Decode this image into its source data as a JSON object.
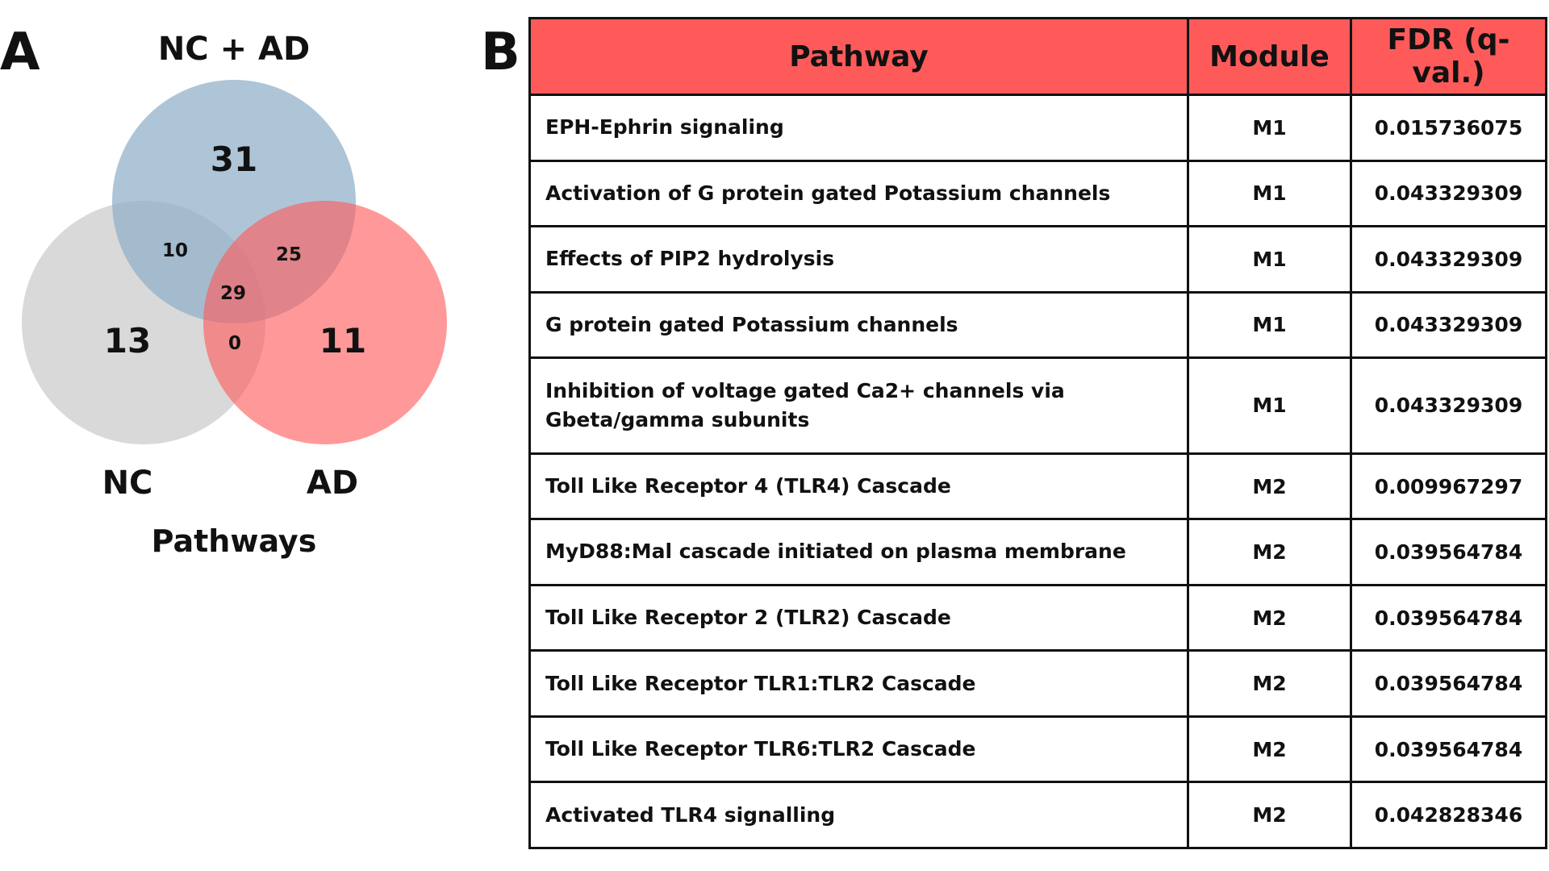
{
  "panel_a": {
    "letter": "A",
    "title": "NC + AD",
    "bottom_label": "Pathways",
    "sets": [
      {
        "name": "NC + AD",
        "color": "#8faec8"
      },
      {
        "name": "NC",
        "color": "#d9d9d9"
      },
      {
        "name": "AD",
        "color": "#ff5a5a"
      }
    ],
    "regions": {
      "only_nc_ad": "31",
      "only_nc": "13",
      "only_ad": "11",
      "nc_ad_and_nc": "10",
      "nc_ad_and_ad": "25",
      "nc_and_ad": "0",
      "all_three": "29"
    }
  },
  "panel_b": {
    "letter": "B",
    "header_color": "#ff5a5a",
    "columns": [
      "Pathway",
      "Module",
      "FDR (q-val.)"
    ],
    "rows": [
      {
        "pathway": "EPH-Ephrin signaling",
        "module": "M1",
        "fdr": "0.015736075"
      },
      {
        "pathway": "Activation of G protein gated Potassium channels",
        "module": "M1",
        "fdr": "0.043329309"
      },
      {
        "pathway": "Effects of PIP2 hydrolysis",
        "module": "M1",
        "fdr": "0.043329309"
      },
      {
        "pathway": "G protein gated Potassium channels",
        "module": "M1",
        "fdr": "0.043329309"
      },
      {
        "pathway": "Inhibition  of voltage gated Ca2+ channels via Gbeta/gamma subunits",
        "module": "M1",
        "fdr": "0.043329309"
      },
      {
        "pathway": "Toll Like Receptor 4 (TLR4) Cascade",
        "module": "M2",
        "fdr": "0.009967297"
      },
      {
        "pathway": "MyD88:Mal cascade initiated on plasma membrane",
        "module": "M2",
        "fdr": "0.039564784"
      },
      {
        "pathway": "Toll Like Receptor 2 (TLR2) Cascade",
        "module": "M2",
        "fdr": "0.039564784"
      },
      {
        "pathway": "Toll Like Receptor TLR1:TLR2 Cascade",
        "module": "M2",
        "fdr": "0.039564784"
      },
      {
        "pathway": "Toll Like Receptor TLR6:TLR2 Cascade",
        "module": "M2",
        "fdr": "0.039564784"
      },
      {
        "pathway": "Activated TLR4 signalling",
        "module": "M2",
        "fdr": "0.042828346"
      }
    ]
  }
}
